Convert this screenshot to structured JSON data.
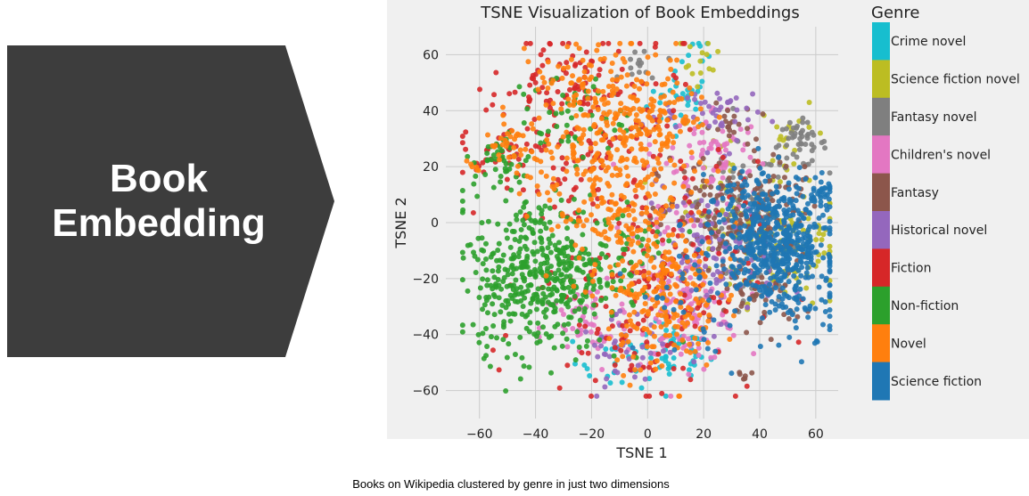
{
  "left_panel": {
    "line1": "Book",
    "line2": "Embedding"
  },
  "caption": "Books on Wikipedia clustered by genre in just two dimensions",
  "colors": {
    "arrow": "#3d3d3d",
    "plot_bg": "#f0f0f0",
    "grid": "#cbcbcb"
  },
  "chart_data": {
    "type": "scatter",
    "title": "TSNE Visualization of Book Embeddings",
    "xlabel": "TSNE 1",
    "ylabel": "TSNE 2",
    "xlim": [
      -72,
      68
    ],
    "ylim": [
      -70,
      70
    ],
    "xticks": [
      -60,
      -40,
      -20,
      0,
      20,
      40,
      60
    ],
    "yticks": [
      -60,
      -40,
      -20,
      0,
      20,
      40,
      60
    ],
    "grid": true,
    "legend_title": "Genre",
    "legend_position": "right",
    "series": [
      {
        "name": "Crime novel",
        "color": "#17becf",
        "clusters": [
          [
            12,
            44,
            6,
            5,
            30
          ],
          [
            -2,
            -50,
            12,
            6,
            40
          ],
          [
            10,
            -46,
            6,
            5,
            30
          ],
          [
            18,
            62,
            3,
            3,
            8
          ]
        ]
      },
      {
        "name": "Science fiction novel",
        "color": "#bcbd22",
        "clusters": [
          [
            48,
            -8,
            12,
            10,
            110
          ],
          [
            28,
            12,
            10,
            10,
            40
          ],
          [
            18,
            56,
            4,
            6,
            15
          ],
          [
            52,
            32,
            6,
            5,
            15
          ]
        ]
      },
      {
        "name": "Fantasy novel",
        "color": "#7f7f7f",
        "clusters": [
          [
            54,
            28,
            5,
            4,
            50
          ],
          [
            34,
            8,
            8,
            10,
            60
          ],
          [
            40,
            -20,
            8,
            8,
            40
          ],
          [
            -2,
            56,
            4,
            4,
            15
          ]
        ]
      },
      {
        "name": "Children's novel",
        "color": "#e377c2",
        "clusters": [
          [
            14,
            -30,
            10,
            10,
            130
          ],
          [
            -22,
            -38,
            8,
            8,
            50
          ],
          [
            24,
            26,
            8,
            8,
            60
          ],
          [
            14,
            10,
            10,
            10,
            40
          ]
        ]
      },
      {
        "name": "Fantasy",
        "color": "#8c564b",
        "clusters": [
          [
            28,
            0,
            12,
            12,
            160
          ],
          [
            40,
            -26,
            8,
            6,
            40
          ],
          [
            48,
            10,
            8,
            6,
            30
          ],
          [
            34,
            -54,
            2,
            1,
            6
          ],
          [
            28,
            34,
            5,
            4,
            20
          ]
        ]
      },
      {
        "name": "Historical novel",
        "color": "#9467bd",
        "clusters": [
          [
            22,
            -12,
            12,
            12,
            110
          ],
          [
            -8,
            -46,
            8,
            6,
            40
          ],
          [
            28,
            38,
            6,
            6,
            30
          ],
          [
            10,
            40,
            6,
            4,
            20
          ]
        ]
      },
      {
        "name": "Fiction",
        "color": "#d62728",
        "clusters": [
          [
            -20,
            30,
            20,
            20,
            170
          ],
          [
            -2,
            -22,
            20,
            20,
            170
          ],
          [
            -36,
            50,
            10,
            8,
            40
          ],
          [
            -52,
            26,
            5,
            4,
            20
          ],
          [
            -60,
            18,
            2,
            2,
            5
          ]
        ]
      },
      {
        "name": "Non-fiction",
        "color": "#2ca02c",
        "clusters": [
          [
            -38,
            -18,
            12,
            14,
            420
          ],
          [
            -52,
            22,
            5,
            5,
            40
          ],
          [
            -28,
            38,
            10,
            8,
            50
          ],
          [
            -58,
            -24,
            4,
            8,
            25
          ],
          [
            -10,
            -12,
            10,
            12,
            60
          ]
        ]
      },
      {
        "name": "Novel",
        "color": "#ff7f0e",
        "clusters": [
          [
            -15,
            20,
            14,
            20,
            290
          ],
          [
            5,
            -25,
            10,
            14,
            220
          ],
          [
            2,
            35,
            10,
            12,
            120
          ],
          [
            -22,
            48,
            10,
            6,
            40
          ],
          [
            -50,
            28,
            4,
            4,
            30
          ],
          [
            -62,
            18,
            2,
            2,
            6
          ]
        ]
      },
      {
        "name": "Science fiction",
        "color": "#1f77b4",
        "clusters": [
          [
            46,
            -8,
            10,
            10,
            480
          ],
          [
            62,
            10,
            2,
            3,
            30
          ],
          [
            38,
            10,
            8,
            6,
            50
          ],
          [
            52,
            -30,
            8,
            6,
            40
          ],
          [
            22,
            -20,
            14,
            14,
            50
          ],
          [
            55,
            -45,
            4,
            3,
            6
          ]
        ]
      }
    ]
  }
}
